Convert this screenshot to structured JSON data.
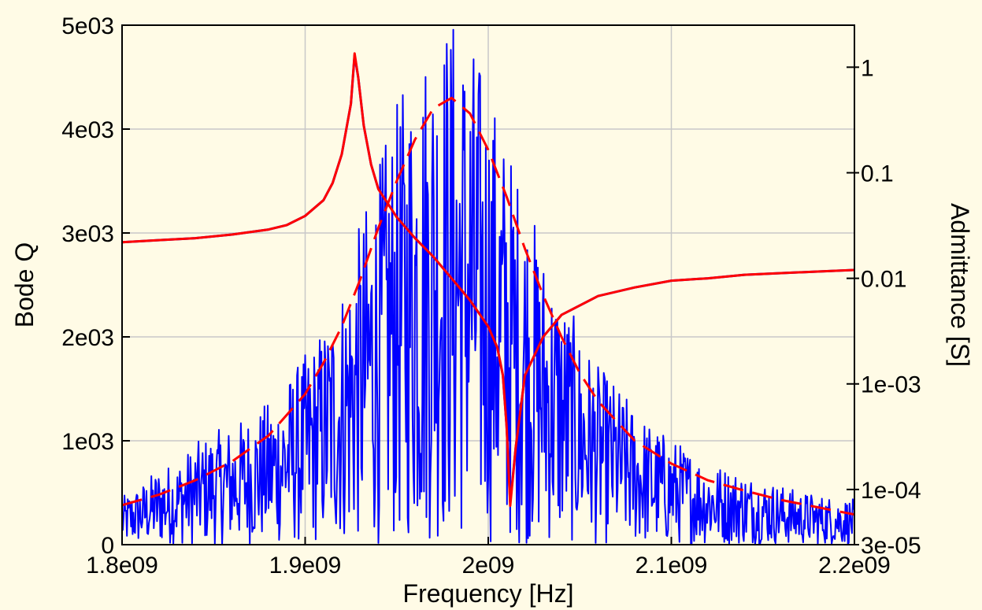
{
  "chart_data": {
    "type": "line",
    "xlabel": "Frequency [Hz]",
    "ylabel": "Bode Q",
    "y2label": "Admittance [S]",
    "xlim": [
      1800000000.0,
      2200000000.0
    ],
    "ylim": [
      0,
      5000
    ],
    "y2lim": [
      3e-05,
      2.5
    ],
    "y2scale": "log",
    "grid": true,
    "background": "#fffbe6",
    "x_ticks": [
      {
        "value": 1800000000.0,
        "label": "1.8e09"
      },
      {
        "value": 1900000000.0,
        "label": "1.9e09"
      },
      {
        "value": 2000000000.0,
        "label": "2e09"
      },
      {
        "value": 2100000000.0,
        "label": "2.1e09"
      },
      {
        "value": 2200000000.0,
        "label": "2.2e09"
      }
    ],
    "y_ticks": [
      {
        "value": 0,
        "label": "0"
      },
      {
        "value": 1000,
        "label": "1e03"
      },
      {
        "value": 2000,
        "label": "2e03"
      },
      {
        "value": 3000,
        "label": "3e03"
      },
      {
        "value": 4000,
        "label": "4e03"
      },
      {
        "value": 5000,
        "label": "5e03"
      }
    ],
    "y2_ticks": [
      {
        "value": 3e-05,
        "label": "3e-05"
      },
      {
        "value": 0.0001,
        "label": "1e-04"
      },
      {
        "value": 0.001,
        "label": "1e-03"
      },
      {
        "value": 0.01,
        "label": "0.01"
      },
      {
        "value": 0.1,
        "label": "0.1"
      },
      {
        "value": 1,
        "label": "1"
      }
    ],
    "series": [
      {
        "key": "admittance_measured",
        "axis": "y2",
        "color": "#0000ff",
        "style": "solid",
        "x": [
          1800000000.0,
          1820000000.0,
          1840000000.0,
          1860000000.0,
          1880000000.0,
          1890000000.0,
          1900000000.0,
          1910000000.0,
          1915000000.0,
          1920000000.0,
          1925000000.0,
          1927000000.0,
          1929000000.0,
          1932000000.0,
          1936000000.0,
          1940000000.0,
          1950000000.0,
          1960000000.0,
          1970000000.0,
          1980000000.0,
          1990000000.0,
          2000000000.0,
          2005000000.0,
          2008000000.0,
          2010000000.0,
          2012000000.0,
          2015000000.0,
          2020000000.0,
          2030000000.0,
          2040000000.0,
          2060000000.0,
          2080000000.0,
          2100000000.0,
          2120000000.0,
          2140000000.0,
          2160000000.0,
          2180000000.0,
          2200000000.0
        ],
        "y": [
          0.022,
          0.023,
          0.024,
          0.026,
          0.029,
          0.032,
          0.039,
          0.055,
          0.08,
          0.15,
          0.45,
          1.3,
          0.8,
          0.28,
          0.12,
          0.07,
          0.038,
          0.024,
          0.016,
          0.01,
          0.0062,
          0.0035,
          0.0022,
          0.0012,
          0.0004,
          7.5e-05,
          0.00025,
          0.0012,
          0.0028,
          0.0045,
          0.0068,
          0.0082,
          0.0095,
          0.01,
          0.0108,
          0.0112,
          0.0116,
          0.012
        ]
      },
      {
        "key": "admittance_fit",
        "axis": "y2",
        "color": "#ff0000",
        "style": "solid",
        "x": [
          1800000000.0,
          1820000000.0,
          1840000000.0,
          1860000000.0,
          1880000000.0,
          1890000000.0,
          1900000000.0,
          1910000000.0,
          1915000000.0,
          1920000000.0,
          1925000000.0,
          1927000000.0,
          1929000000.0,
          1932000000.0,
          1936000000.0,
          1940000000.0,
          1950000000.0,
          1960000000.0,
          1970000000.0,
          1980000000.0,
          1990000000.0,
          2000000000.0,
          2005000000.0,
          2008000000.0,
          2010000000.0,
          2012000000.0,
          2015000000.0,
          2020000000.0,
          2030000000.0,
          2040000000.0,
          2060000000.0,
          2080000000.0,
          2100000000.0,
          2120000000.0,
          2140000000.0,
          2160000000.0,
          2180000000.0,
          2200000000.0
        ],
        "y": [
          0.022,
          0.023,
          0.024,
          0.026,
          0.029,
          0.032,
          0.039,
          0.055,
          0.08,
          0.15,
          0.45,
          1.35,
          0.8,
          0.28,
          0.12,
          0.07,
          0.038,
          0.024,
          0.016,
          0.01,
          0.0062,
          0.0035,
          0.0022,
          0.0012,
          0.0004,
          7e-05,
          0.00025,
          0.0012,
          0.0028,
          0.0045,
          0.0068,
          0.0082,
          0.0095,
          0.01,
          0.0108,
          0.0112,
          0.0116,
          0.012
        ]
      },
      {
        "key": "bode_q_fit",
        "axis": "y",
        "color": "#ff0000",
        "style": "dashed",
        "x": [
          1800000000.0,
          1820000000.0,
          1840000000.0,
          1860000000.0,
          1880000000.0,
          1900000000.0,
          1910000000.0,
          1920000000.0,
          1930000000.0,
          1940000000.0,
          1950000000.0,
          1960000000.0,
          1970000000.0,
          1980000000.0,
          1990000000.0,
          2000000000.0,
          2010000000.0,
          2020000000.0,
          2030000000.0,
          2040000000.0,
          2050000000.0,
          2060000000.0,
          2080000000.0,
          2100000000.0,
          2120000000.0,
          2140000000.0,
          2160000000.0,
          2180000000.0,
          2200000000.0
        ],
        "y": [
          380,
          480,
          620,
          800,
          1050,
          1450,
          1750,
          2100,
          2550,
          3050,
          3500,
          3900,
          4200,
          4300,
          4150,
          3800,
          3350,
          2850,
          2400,
          2000,
          1650,
          1380,
          1000,
          780,
          620,
          520,
          430,
          360,
          290
        ]
      },
      {
        "key": "bode_q_measured",
        "axis": "y",
        "color": "#0000ff",
        "style": "noisy",
        "x": [
          1800000000.0,
          1810000000.0,
          1820000000.0,
          1830000000.0,
          1840000000.0,
          1850000000.0,
          1860000000.0,
          1870000000.0,
          1880000000.0,
          1890000000.0,
          1900000000.0,
          1910000000.0,
          1920000000.0,
          1930000000.0,
          1940000000.0,
          1950000000.0,
          1960000000.0,
          1970000000.0,
          1980000000.0,
          1990000000.0,
          2000000000.0,
          2010000000.0,
          2020000000.0,
          2030000000.0,
          2040000000.0,
          2050000000.0,
          2060000000.0,
          2070000000.0,
          2080000000.0,
          2090000000.0,
          2100000000.0,
          2110000000.0,
          2120000000.0,
          2130000000.0,
          2140000000.0,
          2150000000.0,
          2160000000.0,
          2170000000.0,
          2180000000.0,
          2190000000.0,
          2200000000.0
        ],
        "y": [
          400,
          500,
          650,
          700,
          850,
          950,
          1000,
          1100,
          1200,
          1400,
          1600,
          1850,
          2200,
          2700,
          3200,
          3700,
          4100,
          4400,
          4500,
          4300,
          3900,
          3400,
          3000,
          2500,
          2150,
          1800,
          1500,
          1350,
          1150,
          1000,
          900,
          800,
          700,
          650,
          600,
          550,
          500,
          450,
          420,
          400,
          380
        ]
      }
    ]
  }
}
